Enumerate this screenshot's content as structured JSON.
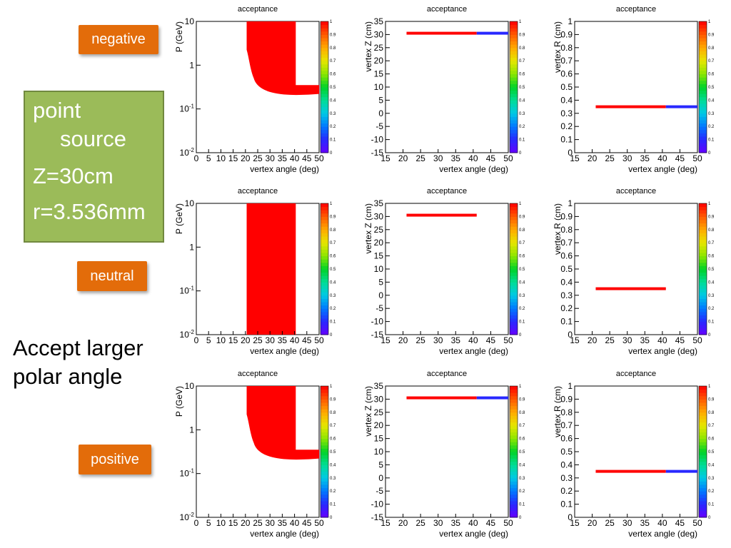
{
  "labels": {
    "negative": "negative",
    "neutral": "neutral",
    "positive": "positive"
  },
  "source_box": {
    "line1": "point",
    "line2": "source",
    "line3": "Z=30cm",
    "line4": "r=3.536mm"
  },
  "note": {
    "line1": "Accept larger",
    "line2": "polar angle"
  },
  "colors": {
    "label_bg": "#e36c0a",
    "box_bg": "#9bbb59",
    "acceptance_full": "#ff0000",
    "acceptance_low": "#6600ff"
  },
  "chart_data": [
    {
      "row": "negative",
      "type": "heatmap",
      "title": "acceptance",
      "xlabel": "vertex angle (deg)",
      "ylabel": "P (GeV)",
      "xlim": [
        0,
        50
      ],
      "ylim": [
        0.01,
        10
      ],
      "yscale": "log",
      "z_range": [
        0,
        1
      ],
      "xticks": [
        "0",
        "5",
        "10",
        "15",
        "20",
        "25",
        "30",
        "35",
        "40",
        "45",
        "50"
      ],
      "yticks": [
        "10^-2",
        "10^-1",
        "1",
        "10"
      ],
      "ztick_labels": [
        "0",
        "0.1",
        "0.2",
        "0.3",
        "0.4",
        "0.5",
        "0.6",
        "0.7",
        "0.8",
        "0.9",
        "1"
      ],
      "region": {
        "theta_min": 20.5,
        "theta_cut": 40.5,
        "theta_max": 50,
        "p_max": 10,
        "p_min_low_theta": 0.5,
        "p_min_high_theta": 0.22,
        "value": 1
      }
    },
    {
      "row": "negative",
      "type": "heatmap",
      "title": "acceptance",
      "xlabel": "vertex angle (deg)",
      "ylabel": "vertex Z (cm)",
      "xlim": [
        15,
        50
      ],
      "ylim": [
        -15,
        35
      ],
      "z_range": [
        0,
        1
      ],
      "xticks": [
        "15",
        "20",
        "25",
        "30",
        "35",
        "40",
        "45",
        "50"
      ],
      "yticks": [
        "-15",
        "-10",
        "-5",
        "0",
        "5",
        "10",
        "15",
        "20",
        "25",
        "30",
        "35"
      ],
      "ztick_labels": [
        "0",
        "0.1",
        "0.2",
        "0.3",
        "0.4",
        "0.5",
        "0.6",
        "0.7",
        "0.8",
        "0.9",
        "1"
      ],
      "segments": [
        {
          "x_from": 21,
          "x_to": 41,
          "y": 30.5,
          "value": 1
        },
        {
          "x_from": 41,
          "x_to": 50,
          "y": 30.5,
          "value": 0.1
        }
      ]
    },
    {
      "row": "negative",
      "type": "heatmap",
      "title": "acceptance",
      "xlabel": "vertex angle (deg)",
      "ylabel": "vertex R (cm)",
      "xlim": [
        15,
        50
      ],
      "ylim": [
        0,
        1
      ],
      "z_range": [
        0,
        1
      ],
      "xticks": [
        "15",
        "20",
        "25",
        "30",
        "35",
        "40",
        "45",
        "50"
      ],
      "yticks": [
        "0",
        "0.1",
        "0.2",
        "0.3",
        "0.4",
        "0.5",
        "0.6",
        "0.7",
        "0.8",
        "0.9",
        "1"
      ],
      "ztick_labels": [
        "0",
        "0.1",
        "0.2",
        "0.3",
        "0.4",
        "0.5",
        "0.6",
        "0.7",
        "0.8",
        "0.9",
        "1"
      ],
      "segments": [
        {
          "x_from": 21,
          "x_to": 41,
          "y": 0.35,
          "value": 1
        },
        {
          "x_from": 41,
          "x_to": 50,
          "y": 0.35,
          "value": 0.1
        }
      ]
    },
    {
      "row": "neutral",
      "type": "heatmap",
      "title": "acceptance",
      "xlabel": "vertex angle (deg)",
      "ylabel": "P (GeV)",
      "xlim": [
        0,
        50
      ],
      "ylim": [
        0.01,
        10
      ],
      "yscale": "log",
      "z_range": [
        0,
        1
      ],
      "xticks": [
        "0",
        "5",
        "10",
        "15",
        "20",
        "25",
        "30",
        "35",
        "40",
        "45",
        "50"
      ],
      "yticks": [
        "10^-2",
        "10^-1",
        "1",
        "10"
      ],
      "ztick_labels": [
        "0",
        "0.1",
        "0.2",
        "0.3",
        "0.4",
        "0.5",
        "0.6",
        "0.7",
        "0.8",
        "0.9",
        "1"
      ],
      "region": {
        "theta_min": 20.5,
        "theta_cut": 40.5,
        "theta_max": 40.5,
        "p_max": 10,
        "p_min_low_theta": 0.01,
        "p_min_high_theta": 0.01,
        "value": 1
      }
    },
    {
      "row": "neutral",
      "type": "heatmap",
      "title": "acceptance",
      "xlabel": "vertex angle (deg)",
      "ylabel": "vertex Z (cm)",
      "xlim": [
        15,
        50
      ],
      "ylim": [
        -15,
        35
      ],
      "z_range": [
        0,
        1
      ],
      "xticks": [
        "15",
        "20",
        "25",
        "30",
        "35",
        "40",
        "45",
        "50"
      ],
      "yticks": [
        "-15",
        "-10",
        "-5",
        "0",
        "5",
        "10",
        "15",
        "20",
        "25",
        "30",
        "35"
      ],
      "ztick_labels": [
        "0",
        "0.1",
        "0.2",
        "0.3",
        "0.4",
        "0.5",
        "0.6",
        "0.7",
        "0.8",
        "0.9",
        "1"
      ],
      "segments": [
        {
          "x_from": 21,
          "x_to": 41,
          "y": 30.5,
          "value": 1
        }
      ]
    },
    {
      "row": "neutral",
      "type": "heatmap",
      "title": "acceptance",
      "xlabel": "vertex angle (deg)",
      "ylabel": "vertex R (cm)",
      "xlim": [
        15,
        50
      ],
      "ylim": [
        0,
        1
      ],
      "z_range": [
        0,
        1
      ],
      "xticks": [
        "15",
        "20",
        "25",
        "30",
        "35",
        "40",
        "45",
        "50"
      ],
      "yticks": [
        "0",
        "0.1",
        "0.2",
        "0.3",
        "0.4",
        "0.5",
        "0.6",
        "0.7",
        "0.8",
        "0.9",
        "1"
      ],
      "ztick_labels": [
        "0",
        "0.1",
        "0.2",
        "0.3",
        "0.4",
        "0.5",
        "0.6",
        "0.7",
        "0.8",
        "0.9",
        "1"
      ],
      "segments": [
        {
          "x_from": 21,
          "x_to": 41,
          "y": 0.35,
          "value": 1
        }
      ]
    },
    {
      "row": "positive",
      "type": "heatmap",
      "title": "acceptance",
      "xlabel": "vertex angle (deg)",
      "ylabel": "P (GeV)",
      "xlim": [
        0,
        50
      ],
      "ylim": [
        0.01,
        10
      ],
      "yscale": "log",
      "z_range": [
        0,
        1
      ],
      "xticks": [
        "0",
        "5",
        "10",
        "15",
        "20",
        "25",
        "30",
        "35",
        "40",
        "45",
        "50"
      ],
      "yticks": [
        "10^-2",
        "10^-1",
        "1",
        "10"
      ],
      "ztick_labels": [
        "0",
        "0.1",
        "0.2",
        "0.3",
        "0.4",
        "0.5",
        "0.6",
        "0.7",
        "0.8",
        "0.9",
        "1"
      ],
      "region": {
        "theta_min": 20.5,
        "theta_cut": 40.5,
        "theta_max": 50,
        "p_max": 10,
        "p_min_low_theta": 0.5,
        "p_min_high_theta": 0.22,
        "value": 1
      }
    },
    {
      "row": "positive",
      "type": "heatmap",
      "title": "acceptance",
      "xlabel": "vertex angle (deg)",
      "ylabel": "vertex Z (cm)",
      "xlim": [
        15,
        50
      ],
      "ylim": [
        -15,
        35
      ],
      "z_range": [
        0,
        1
      ],
      "xticks": [
        "15",
        "20",
        "25",
        "30",
        "35",
        "40",
        "45",
        "50"
      ],
      "yticks": [
        "-15",
        "-10",
        "-5",
        "0",
        "5",
        "10",
        "15",
        "20",
        "25",
        "30",
        "35"
      ],
      "ztick_labels": [
        "0",
        "0.1",
        "0.2",
        "0.3",
        "0.4",
        "0.5",
        "0.6",
        "0.7",
        "0.8",
        "0.9",
        "1"
      ],
      "segments": [
        {
          "x_from": 21,
          "x_to": 41,
          "y": 30.5,
          "value": 1
        },
        {
          "x_from": 41,
          "x_to": 50,
          "y": 30.5,
          "value": 0.1
        }
      ]
    },
    {
      "row": "positive",
      "type": "heatmap",
      "title": "acceptance",
      "xlabel": "vertex angle (deg)",
      "ylabel": "vertex R (cm)",
      "xlim": [
        15,
        50
      ],
      "ylim": [
        0,
        1
      ],
      "z_range": [
        0,
        1
      ],
      "xticks": [
        "15",
        "20",
        "25",
        "30",
        "35",
        "40",
        "45",
        "50"
      ],
      "yticks": [
        "0",
        "0.1",
        "0.2",
        "0.3",
        "0.4",
        "0.5",
        "0.6",
        "0.7",
        "0.8",
        "0.9",
        "1"
      ],
      "ztick_labels": [
        "0",
        "0.1",
        "0.2",
        "0.3",
        "0.4",
        "0.5",
        "0.6",
        "0.7",
        "0.8",
        "0.9",
        "1"
      ],
      "segments": [
        {
          "x_from": 21,
          "x_to": 41,
          "y": 0.35,
          "value": 1
        },
        {
          "x_from": 41,
          "x_to": 50,
          "y": 0.35,
          "value": 0.1
        }
      ]
    }
  ]
}
